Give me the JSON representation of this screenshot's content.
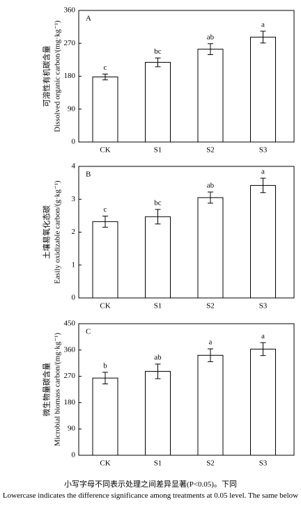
{
  "chart_data": [
    {
      "type": "bar",
      "panel_label": "A",
      "ylabel_zh": "可溶性有机碳含量",
      "ylabel": "Dissolved organic carbon/(mg·kg⁻¹)",
      "categories": [
        "CK",
        "S1",
        "S2",
        "S3"
      ],
      "values": [
        178,
        218,
        254,
        287
      ],
      "errors": [
        8,
        12,
        15,
        16
      ],
      "annotations": [
        "c",
        "bc",
        "ab",
        "a"
      ],
      "color": "#ffffff",
      "ylim": [
        0,
        360
      ],
      "yticks": [
        0,
        90,
        180,
        270,
        360
      ]
    },
    {
      "type": "bar",
      "panel_label": "B",
      "ylabel_zh": "土壤易氧化态碳",
      "ylabel": "Easily oxidizable carbon/(g·kg⁻¹)",
      "categories": [
        "CK",
        "S1",
        "S2",
        "S3"
      ],
      "values": [
        2.32,
        2.47,
        3.05,
        3.42
      ],
      "errors": [
        0.17,
        0.22,
        0.17,
        0.22
      ],
      "annotations": [
        "c",
        "bc",
        "ab",
        "a"
      ],
      "color": "#ffffff",
      "ylim": [
        0,
        4
      ],
      "yticks": [
        0,
        1,
        2,
        3,
        4
      ]
    },
    {
      "type": "bar",
      "panel_label": "C",
      "ylabel_zh": "微生物量碳含量",
      "ylabel": "Microbial biomass carbon/(mg·kg⁻¹)",
      "categories": [
        "CK",
        "S1",
        "S2",
        "S3"
      ],
      "values": [
        264,
        287,
        342,
        363
      ],
      "errors": [
        20,
        25,
        22,
        22
      ],
      "annotations": [
        "b",
        "ab",
        "a",
        "a"
      ],
      "color": "#ffffff",
      "ylim": [
        0,
        450
      ],
      "yticks": [
        0,
        90,
        180,
        270,
        360,
        450
      ]
    }
  ],
  "caption": {
    "zh": "小写字母不同表示处理之间差异显著(P<0.05)。下同",
    "en": "Lowercase indicates the difference significance among treatments at 0.05 level. The same below"
  }
}
